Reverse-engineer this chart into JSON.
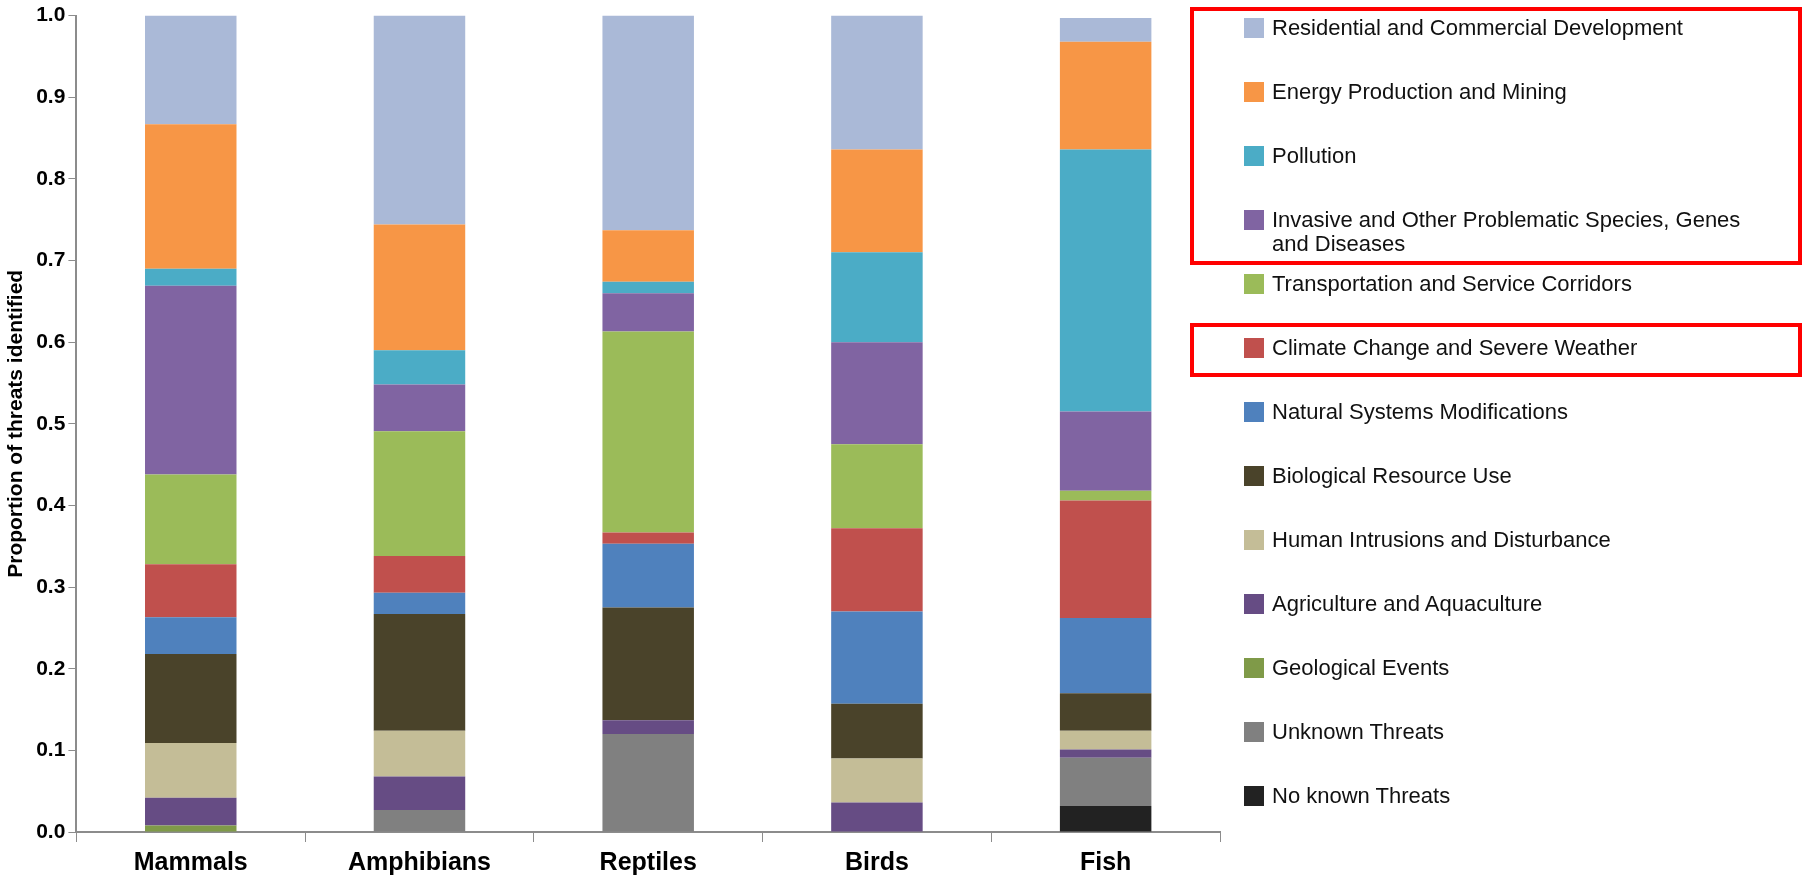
{
  "chart_data": {
    "type": "bar",
    "stacked": true,
    "ylabel": "Proportion of threats identified",
    "categories": [
      "Mammals",
      "Amphibians",
      "Reptiles",
      "Birds",
      "Fish"
    ],
    "ylim": [
      0,
      1
    ],
    "yticks": [
      {
        "value": 0,
        "label": "0.0"
      },
      {
        "value": 0.1,
        "label": "0.1"
      },
      {
        "value": 0.2,
        "label": "0.2"
      },
      {
        "value": 0.3,
        "label": "0.3"
      },
      {
        "value": 0.4,
        "label": "0.4"
      },
      {
        "value": 0.5,
        "label": "0.5"
      },
      {
        "value": 0.6,
        "label": "0.6"
      },
      {
        "value": 0.7,
        "label": "0.7"
      },
      {
        "value": 0.8,
        "label": "0.8"
      },
      {
        "value": 0.9,
        "label": "0.9"
      },
      {
        "value": 1,
        "label": "1.0"
      }
    ],
    "grid": false,
    "legend": "right",
    "series": [
      {
        "name": "No known Threats",
        "color": "#222222",
        "values": [
          0,
          0,
          0,
          0,
          0.032
        ]
      },
      {
        "name": "Unknown Threats",
        "color": "#808080",
        "values": [
          0,
          0.027,
          0.12,
          0,
          0.059
        ]
      },
      {
        "name": "Geological Events",
        "color": "#7f9a48",
        "values": [
          0.008,
          0,
          0,
          0,
          0
        ]
      },
      {
        "name": "Agriculture and Aquaculture",
        "color": "#664c84",
        "values": [
          0.034,
          0.041,
          0.017,
          0.036,
          0.01
        ]
      },
      {
        "name": "Human Intrusions and Disturbance",
        "color": "#c4bd97",
        "values": [
          0.067,
          0.056,
          0,
          0.054,
          0.023
        ]
      },
      {
        "name": "Biological Resource Use",
        "color": "#4a432a",
        "values": [
          0.109,
          0.143,
          0.138,
          0.067,
          0.046
        ]
      },
      {
        "name": "Natural Systems Modifications",
        "color": "#4f81bd",
        "values": [
          0.045,
          0.026,
          0.078,
          0.113,
          0.092
        ]
      },
      {
        "name": "Climate Change and Severe Weather",
        "color": "#c0504d",
        "values": [
          0.065,
          0.045,
          0.014,
          0.102,
          0.144
        ]
      },
      {
        "name": "Transportation and Service Corridors",
        "color": "#9bbb59",
        "values": [
          0.11,
          0.153,
          0.246,
          0.103,
          0.012
        ]
      },
      {
        "name": "Invasive and Other Problematic Species, Genes and Diseases",
        "color": "#8064a2",
        "values": [
          0.231,
          0.057,
          0.047,
          0.125,
          0.097
        ]
      },
      {
        "name": "Pollution",
        "color": "#4bacc6",
        "values": [
          0.021,
          0.042,
          0.014,
          0.11,
          0.321
        ]
      },
      {
        "name": "Energy Production and Mining",
        "color": "#f79646",
        "values": [
          0.177,
          0.154,
          0.063,
          0.126,
          0.132
        ]
      },
      {
        "name": "Residential and Commercial Development",
        "color": "#aab9d7",
        "values": [
          0.133,
          0.256,
          0.263,
          0.164,
          0.029
        ]
      }
    ]
  }
}
